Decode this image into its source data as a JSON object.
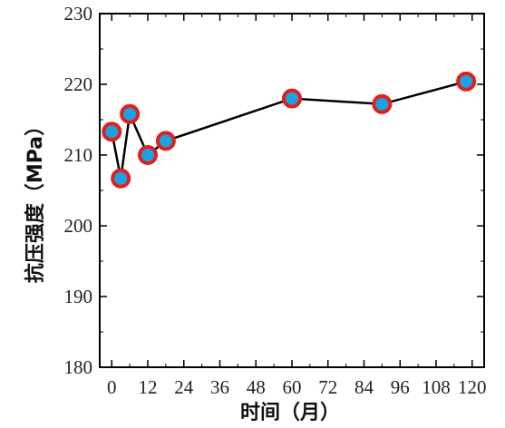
{
  "chart_data": {
    "type": "line",
    "xlabel": "时间（月）",
    "ylabel": "抗压强度（MPa）",
    "xlim": [
      -4,
      124
    ],
    "ylim": [
      180,
      230
    ],
    "xticks": [
      0,
      12,
      24,
      36,
      48,
      60,
      72,
      84,
      96,
      108,
      120
    ],
    "yticks": [
      180,
      190,
      200,
      210,
      220,
      230
    ],
    "series": [
      {
        "x": [
          0,
          3,
          6,
          12,
          18,
          60,
          90,
          118
        ],
        "y": [
          213.3,
          206.7,
          215.8,
          210.0,
          212.0,
          218.0,
          217.2,
          220.4
        ]
      }
    ],
    "colors": {
      "line": "#000000",
      "marker_fill": "#1aa3e0",
      "marker_edge": "#e0201c"
    }
  }
}
